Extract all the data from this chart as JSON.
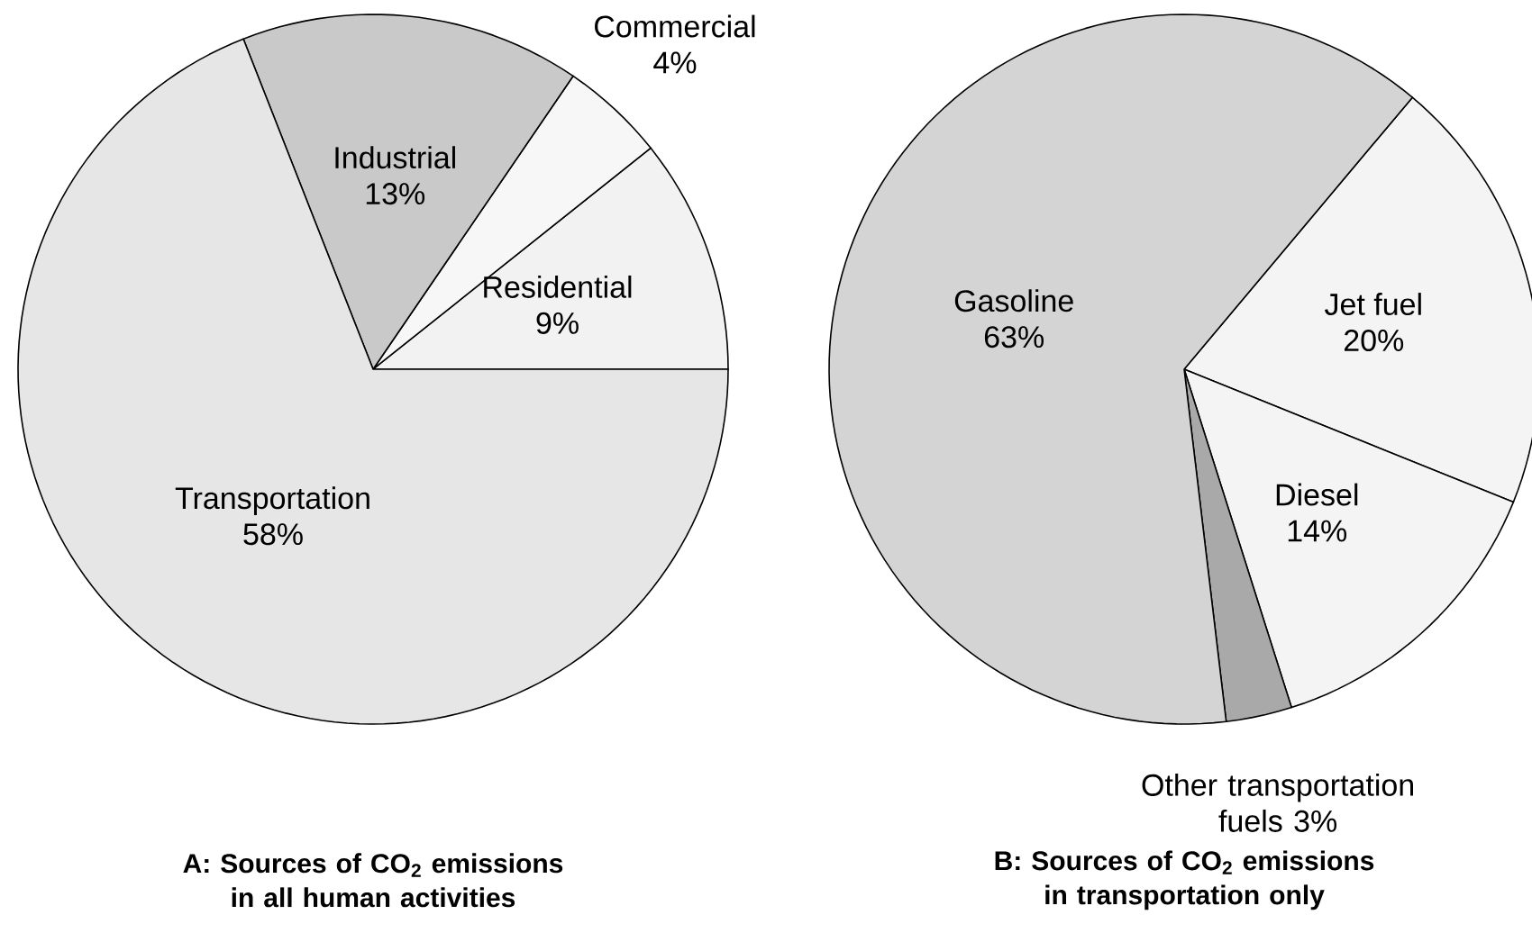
{
  "chart_data": [
    {
      "type": "pie",
      "title": "A: Sources of CO$_{2}$ emissions in all human activities",
      "categories": [
        "Residential",
        "Commercial",
        "Industrial",
        "Transportation"
      ],
      "values": [
        9,
        4,
        13,
        58
      ],
      "value_labels": [
        "9%",
        "4%",
        "13%",
        "58%"
      ],
      "colors": [
        "#f2f2f2",
        "#f7f7f7",
        "#c9c9c9",
        "#e6e6e6"
      ]
    },
    {
      "type": "pie",
      "title": "B: Sources of CO$_{2}$ emissions in transportation only",
      "categories": [
        "Jet fuel",
        "Diesel",
        "Other transportation fuels",
        "Gasoline"
      ],
      "values": [
        20,
        14,
        3,
        63
      ],
      "value_labels": [
        "20%",
        "14%",
        "3%",
        "63%"
      ],
      "colors": [
        "#f4f4f4",
        "#f4f4f4",
        "#a9a9a9",
        "#d4d4d4"
      ]
    }
  ]
}
